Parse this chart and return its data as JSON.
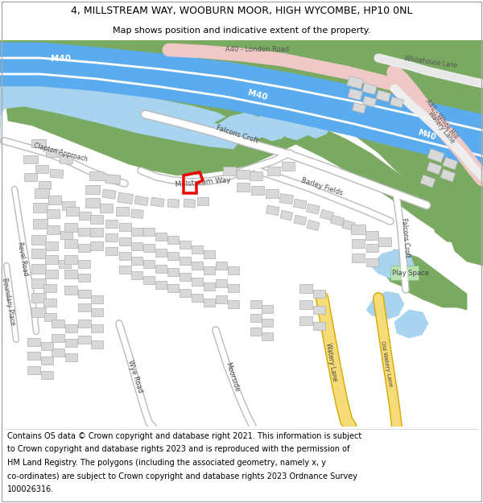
{
  "title_line1": "4, MILLSTREAM WAY, WOOBURN MOOR, HIGH WYCOMBE, HP10 0NL",
  "title_line2": "Map shows position and indicative extent of the property.",
  "footer_lines": [
    "Contains OS data © Crown copyright and database right 2021. This information is subject",
    "to Crown copyright and database rights 2023 and is reproduced with the permission of",
    "HM Land Registry. The polygons (including the associated geometry, namely x, y",
    "co-ordinates) are subject to Crown copyright and database rights 2023 Ordnance Survey",
    "100026316."
  ],
  "title_fontsize": 9.0,
  "subtitle_fontsize": 8.0,
  "footer_fontsize": 7.0,
  "fig_width": 6.0,
  "fig_height": 6.25,
  "bg_color": "#f8f8f8",
  "white": "#ffffff",
  "green": "#7aaa62",
  "blue_water": "#a8d4f0",
  "blue_motorway": "#5aacee",
  "pink_road": "#f0c8c8",
  "yellow_road": "#f5dc78",
  "yellow_road_edge": "#d4a800",
  "building_fill": "#d8d8d8",
  "building_edge": "#b0b0b0",
  "red": "#ee0000",
  "road_gray": "#bbbbbb",
  "dark_gray": "#888888"
}
